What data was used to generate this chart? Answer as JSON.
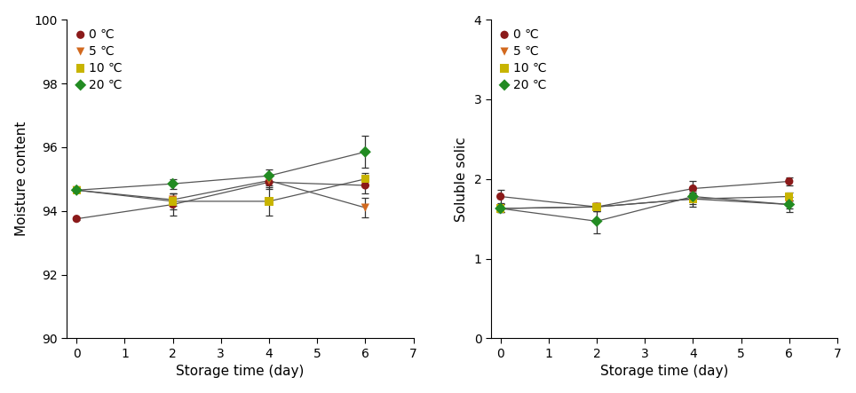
{
  "left": {
    "ylabel": "Moisture content",
    "xlabel": "Storage time (day)",
    "xlim": [
      -0.2,
      7
    ],
    "ylim": [
      90,
      100
    ],
    "yticks": [
      90,
      92,
      94,
      96,
      98,
      100
    ],
    "xticks": [
      0,
      1,
      2,
      3,
      4,
      5,
      6,
      7
    ],
    "series": [
      {
        "label": "0 ℃",
        "color": "#8B1A1A",
        "marker": "o",
        "markersize": 7,
        "x": [
          0,
          2,
          4,
          6
        ],
        "y": [
          93.75,
          94.2,
          94.9,
          94.8
        ],
        "yerr": [
          0.05,
          0.35,
          0.2,
          0.25
        ]
      },
      {
        "label": "5 ℃",
        "color": "#D2691E",
        "marker": "v",
        "markersize": 7,
        "x": [
          0,
          2,
          4,
          6
        ],
        "y": [
          94.65,
          94.35,
          94.95,
          94.1
        ],
        "yerr": [
          0.05,
          0.2,
          0.15,
          0.3
        ]
      },
      {
        "label": "10 ℃",
        "color": "#C8B400",
        "marker": "s",
        "markersize": 7,
        "x": [
          0,
          2,
          4,
          6
        ],
        "y": [
          94.65,
          94.3,
          94.3,
          95.0
        ],
        "yerr": [
          0.05,
          0.25,
          0.45,
          0.2
        ]
      },
      {
        "label": "20 ℃",
        "color": "#228B22",
        "marker": "D",
        "markersize": 7,
        "x": [
          0,
          2,
          4,
          6
        ],
        "y": [
          94.65,
          94.85,
          95.1,
          95.85
        ],
        "yerr": [
          0.05,
          0.15,
          0.2,
          0.5
        ]
      }
    ]
  },
  "right": {
    "ylabel": "Soluble solic",
    "xlabel": "Storage time (day)",
    "xlim": [
      -0.2,
      7
    ],
    "ylim": [
      0,
      4
    ],
    "yticks": [
      0,
      1,
      2,
      3,
      4
    ],
    "xticks": [
      0,
      1,
      2,
      3,
      4,
      5,
      6,
      7
    ],
    "series": [
      {
        "label": "0 ℃",
        "color": "#8B1A1A",
        "marker": "o",
        "markersize": 7,
        "x": [
          0,
          2,
          4,
          6
        ],
        "y": [
          1.78,
          1.65,
          1.88,
          1.97
        ],
        "yerr": [
          0.08,
          0.05,
          0.1,
          0.05
        ]
      },
      {
        "label": "5 ℃",
        "color": "#D2691E",
        "marker": "v",
        "markersize": 7,
        "x": [
          0,
          2,
          4,
          6
        ],
        "y": [
          1.63,
          1.65,
          1.75,
          1.68
        ],
        "yerr": [
          0.05,
          0.05,
          0.07,
          0.1
        ]
      },
      {
        "label": "10 ℃",
        "color": "#C8B400",
        "marker": "s",
        "markersize": 7,
        "x": [
          0,
          2,
          4,
          6
        ],
        "y": [
          1.63,
          1.65,
          1.75,
          1.78
        ],
        "yerr": [
          0.05,
          0.05,
          0.1,
          0.05
        ]
      },
      {
        "label": "20 ℃",
        "color": "#228B22",
        "marker": "D",
        "markersize": 7,
        "x": [
          0,
          2,
          4,
          6
        ],
        "y": [
          1.63,
          1.47,
          1.78,
          1.68
        ],
        "yerr": [
          0.05,
          0.15,
          0.05,
          0.05
        ]
      }
    ]
  },
  "line_color": "#555555",
  "line_width": 0.9,
  "font_size": 10,
  "label_font_size": 11,
  "tick_font_size": 10
}
